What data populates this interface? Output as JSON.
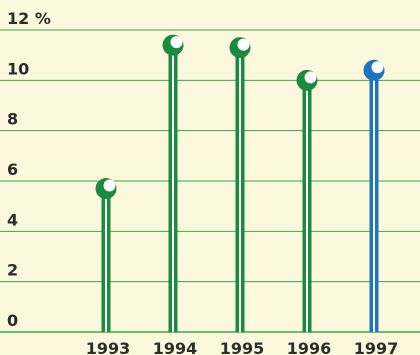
{
  "chart_data": {
    "type": "bar",
    "style": "lollipop",
    "categories": [
      "1993",
      "1994",
      "1995",
      "1996",
      "1997"
    ],
    "values": [
      5.7,
      11.4,
      11.3,
      10.0,
      10.4
    ],
    "y_unit": "%",
    "y_ticks": [
      0,
      2,
      4,
      6,
      8,
      10,
      12
    ],
    "y_tick_labels": [
      "0",
      "2",
      "4",
      "6",
      "8",
      "10",
      "12 %"
    ],
    "ylim": [
      0,
      12
    ],
    "grid": true,
    "colors": {
      "background": "#fbf8dd",
      "grid": "#3aa84a",
      "series": "#1a8a3e",
      "highlight": "#1a74c0",
      "text": "#2c2c2c"
    },
    "highlight_index": 4
  }
}
